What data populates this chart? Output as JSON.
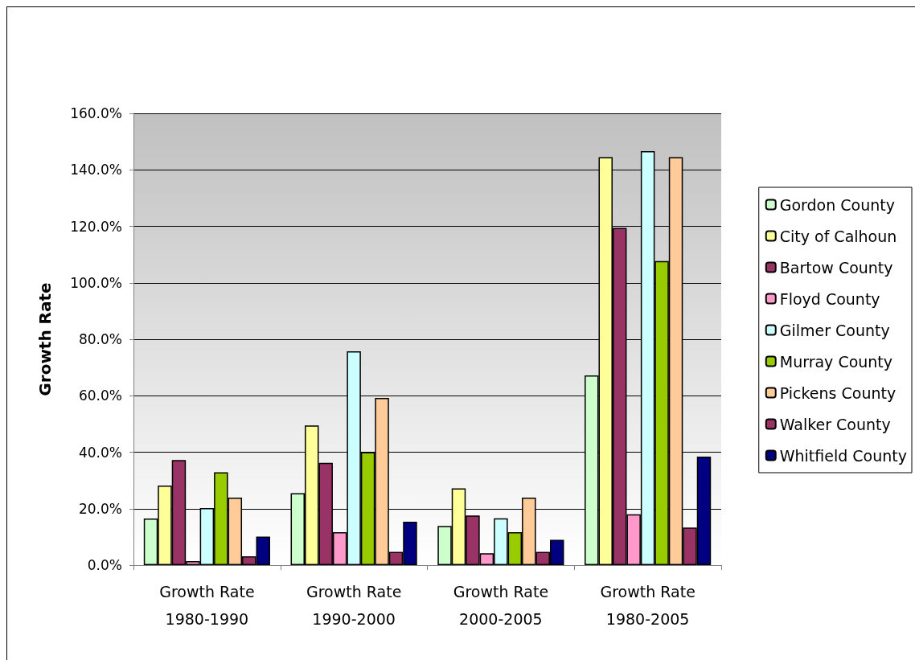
{
  "chart_data": {
    "type": "bar",
    "ylabel": "Growth Rate",
    "categories": [
      "Growth Rate\n1980-1990",
      "Growth Rate\n1990-2000",
      "Growth Rate\n2000-2005",
      "Growth Rate\n1980-2005"
    ],
    "series": [
      {
        "name": "Gordon County",
        "color": "#ccffcc",
        "values": [
          16.5,
          25.5,
          13.9,
          67.2
        ]
      },
      {
        "name": "City of Calhoun",
        "color": "#ffff99",
        "values": [
          28.2,
          49.5,
          27.2,
          144.5
        ]
      },
      {
        "name": "Bartow County",
        "color": "#993366",
        "values": [
          37.2,
          36.2,
          17.6,
          119.4
        ]
      },
      {
        "name": "Floyd County",
        "color": "#ff99cc",
        "values": [
          1.4,
          11.7,
          4.2,
          18.0
        ]
      },
      {
        "name": "Gilmer County",
        "color": "#ccffff",
        "values": [
          20.2,
          75.7,
          16.6,
          146.6
        ]
      },
      {
        "name": "Murray County",
        "color": "#99cc00",
        "values": [
          32.9,
          40.0,
          11.7,
          107.7
        ]
      },
      {
        "name": "Pickens County",
        "color": "#ffcc99",
        "values": [
          23.9,
          59.2,
          23.9,
          144.5
        ]
      },
      {
        "name": "Walker County",
        "color": "#993366",
        "values": [
          3.1,
          4.7,
          4.7,
          13.3
        ]
      },
      {
        "name": "Whitfield County",
        "color": "#000080",
        "values": [
          10.1,
          15.4,
          9.0,
          38.4
        ]
      }
    ],
    "ylim": [
      0,
      160
    ],
    "yticks": [
      {
        "value": 0,
        "label": "0.0%"
      },
      {
        "value": 20,
        "label": "20.0%"
      },
      {
        "value": 40,
        "label": "40.0%"
      },
      {
        "value": 60,
        "label": "60.0%"
      },
      {
        "value": 80,
        "label": "80.0%"
      },
      {
        "value": 100,
        "label": "100.0%"
      },
      {
        "value": 120,
        "label": "120.0%"
      },
      {
        "value": 140,
        "label": "140.0%"
      },
      {
        "value": 160,
        "label": "160.0%"
      }
    ],
    "grid": true,
    "legend": "right"
  }
}
